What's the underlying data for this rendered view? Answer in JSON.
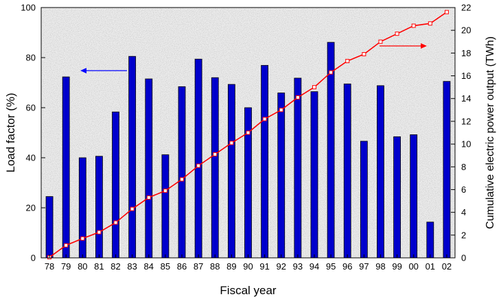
{
  "chart_data": {
    "type": "bar",
    "xlabel": "Fiscal year",
    "ylabel": "Load factor (%)",
    "y2label": "Cumulative electric power output (TWh)",
    "ylim": [
      0,
      100
    ],
    "y2lim": [
      0,
      22
    ],
    "yticks": [
      0,
      20,
      40,
      60,
      80,
      100
    ],
    "y2ticks": [
      0,
      2,
      4,
      6,
      8,
      10,
      12,
      14,
      16,
      18,
      20,
      22
    ],
    "grid": false,
    "background": "speckled light gray",
    "categories": [
      "78",
      "79",
      "80",
      "81",
      "82",
      "83",
      "84",
      "85",
      "86",
      "87",
      "88",
      "89",
      "90",
      "91",
      "92",
      "93",
      "94",
      "95",
      "96",
      "97",
      "98",
      "99",
      "00",
      "01",
      "02"
    ],
    "series": [
      {
        "type": "bar",
        "axis": "left",
        "color": "#0000cc",
        "values": [
          24.5,
          72.3,
          40.0,
          40.6,
          58.3,
          80.5,
          71.5,
          41.2,
          68.4,
          79.4,
          72.0,
          69.3,
          60.0,
          76.9,
          65.9,
          71.8,
          66.4,
          86.1,
          69.5,
          46.6,
          68.8,
          48.4,
          49.2,
          14.3,
          70.5
        ]
      },
      {
        "type": "line",
        "axis": "right",
        "color": "#ff0000",
        "values": [
          0.05,
          1.1,
          1.7,
          2.25,
          3.1,
          4.3,
          5.3,
          5.9,
          6.9,
          8.1,
          9.1,
          10.1,
          11.0,
          12.2,
          13.0,
          14.1,
          15.0,
          16.3,
          17.3,
          17.9,
          19.0,
          19.7,
          20.4,
          20.6,
          21.6
        ]
      }
    ],
    "annotations": [
      {
        "type": "arrow",
        "direction": "left",
        "color": "#0000ff",
        "refers_to": "left-axis"
      },
      {
        "type": "arrow",
        "direction": "right",
        "color": "#ff0000",
        "refers_to": "right-axis"
      }
    ]
  }
}
